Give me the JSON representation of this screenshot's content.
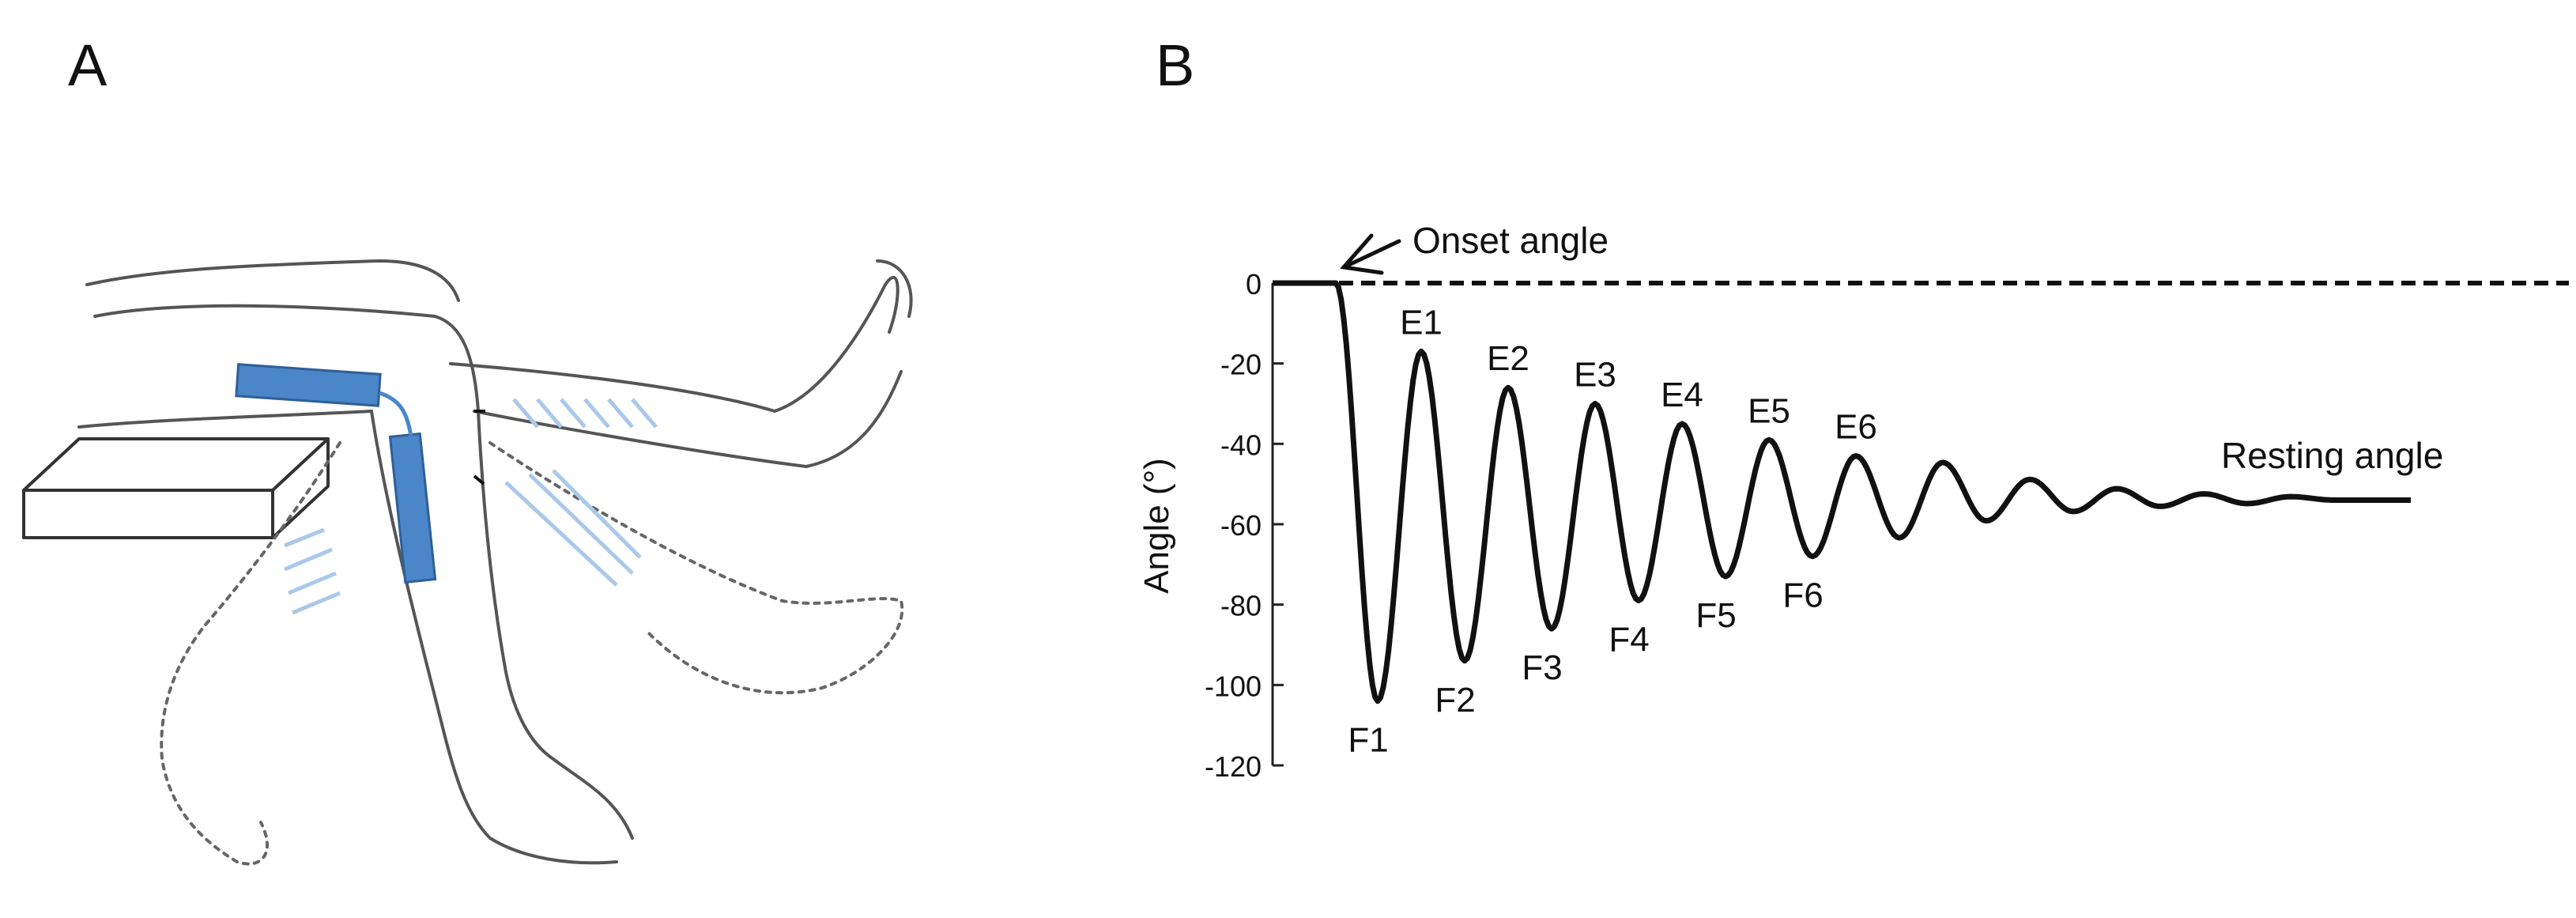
{
  "panels": {
    "a_label": "A",
    "b_label": "B"
  },
  "colors": {
    "sensor": "#4a86c8",
    "sensor_dark": "#2f5f97",
    "muscle_hatch": "#a9c8ea",
    "ink": "#111111",
    "leg_outline": "#555555"
  },
  "chart_data": {
    "type": "line",
    "title": "",
    "xlabel": "",
    "ylabel": "Angle (°)",
    "ylim": [
      -120,
      0
    ],
    "yticks": [
      0,
      -20,
      -40,
      -60,
      -80,
      -100,
      -120
    ],
    "ytick_labels": [
      "0",
      "-20",
      "-40",
      "-60",
      "-80",
      "-100",
      "-120"
    ],
    "reference_line": {
      "y": 0,
      "style": "dashed"
    },
    "annotations": {
      "onset": "Onset angle",
      "resting": "Resting angle"
    },
    "extension_peaks": [
      {
        "label": "E1",
        "y": -17
      },
      {
        "label": "E2",
        "y": -26
      },
      {
        "label": "E3",
        "y": -30
      },
      {
        "label": "E4",
        "y": -35
      },
      {
        "label": "E5",
        "y": -39
      },
      {
        "label": "E6",
        "y": -43
      }
    ],
    "flexion_peaks": [
      {
        "label": "F1",
        "y": -104
      },
      {
        "label": "F2",
        "y": -94
      },
      {
        "label": "F3",
        "y": -86
      },
      {
        "label": "F4",
        "y": -79
      },
      {
        "label": "F5",
        "y": -73
      },
      {
        "label": "F6",
        "y": -68
      }
    ],
    "resting_angle": -54
  }
}
